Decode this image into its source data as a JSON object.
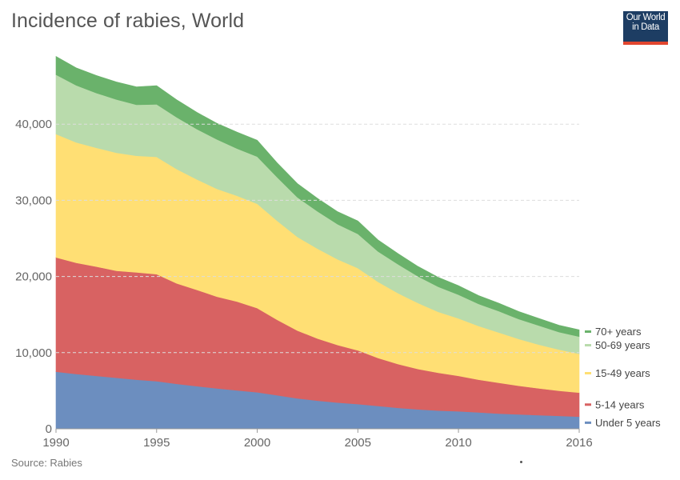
{
  "title": "Incidence of rabies, World",
  "logo": {
    "line1": "Our World",
    "line2": "in Data"
  },
  "source": "Source: Rabies",
  "chart_data": {
    "type": "area",
    "stacked": true,
    "x": [
      1990,
      1991,
      1992,
      1993,
      1994,
      1995,
      1996,
      1997,
      1998,
      1999,
      2000,
      2001,
      2002,
      2003,
      2004,
      2005,
      2006,
      2007,
      2008,
      2009,
      2010,
      2011,
      2012,
      2013,
      2014,
      2015,
      2016
    ],
    "x_ticks": [
      1990,
      1995,
      2000,
      2005,
      2010,
      2016
    ],
    "y_ticks": [
      0,
      10000,
      20000,
      30000,
      40000
    ],
    "y_tick_labels": [
      "0",
      "10,000",
      "20,000",
      "30,000",
      "40,000"
    ],
    "ylim": [
      0,
      50000
    ],
    "grid": "horizontal dashed",
    "legend_position": "right",
    "series": [
      {
        "name": "Under 5 years",
        "color": "#6c8ebf",
        "values": [
          7500,
          7200,
          6950,
          6700,
          6450,
          6250,
          5900,
          5600,
          5300,
          5050,
          4800,
          4400,
          4000,
          3700,
          3450,
          3250,
          3000,
          2750,
          2550,
          2400,
          2300,
          2150,
          2000,
          1900,
          1800,
          1700,
          1600
        ]
      },
      {
        "name": "5-14 years",
        "color": "#d86262",
        "values": [
          15000,
          14600,
          14350,
          14050,
          14100,
          14050,
          13200,
          12650,
          12050,
          11650,
          11050,
          9900,
          8900,
          8150,
          7550,
          7050,
          6300,
          5750,
          5300,
          4950,
          4650,
          4300,
          4050,
          3750,
          3500,
          3300,
          3150
        ]
      },
      {
        "name": "15-49 years",
        "color": "#ffdf74",
        "values": [
          16200,
          15800,
          15600,
          15500,
          15300,
          15400,
          15000,
          14500,
          14150,
          13900,
          13700,
          13000,
          12300,
          11800,
          11250,
          10800,
          10000,
          9300,
          8650,
          8000,
          7550,
          7050,
          6600,
          6150,
          5750,
          5400,
          5100
        ]
      },
      {
        "name": "50-69 years",
        "color": "#b9dbac",
        "values": [
          7800,
          7500,
          7200,
          7000,
          6700,
          6900,
          6800,
          6600,
          6500,
          6200,
          6200,
          5700,
          5200,
          4900,
          4600,
          4500,
          4000,
          3800,
          3500,
          3300,
          3100,
          2900,
          2800,
          2600,
          2500,
          2300,
          2250
        ]
      },
      {
        "name": "70+ years",
        "color": "#6ab26b",
        "values": [
          2400,
          2300,
          2300,
          2300,
          2350,
          2450,
          2300,
          2200,
          2100,
          2150,
          2150,
          1900,
          1800,
          1700,
          1650,
          1700,
          1500,
          1400,
          1300,
          1250,
          1200,
          1100,
          1050,
          1000,
          950,
          900,
          900
        ]
      }
    ]
  }
}
